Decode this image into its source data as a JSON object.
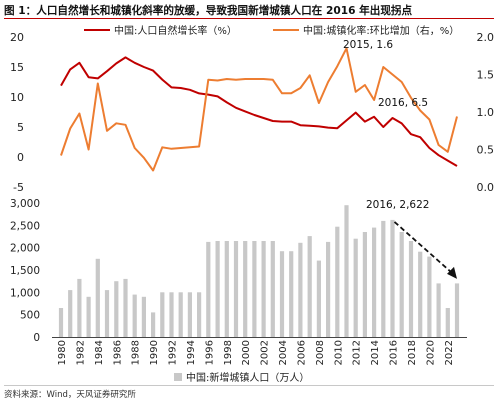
{
  "title": "图 1：人口自然增长和城镇化斜率的放缓，导致我国新增城镇人口在 2016 年出现拐点",
  "source": "资料来源：Wind，天风证券研究所",
  "colors": {
    "natural_growth": "#c00000",
    "urbanization": "#ed7d31",
    "bars": "#c8c8c8",
    "arrow": "#111111",
    "title_rule": "#c00000"
  },
  "chart_data": [
    {
      "type": "line",
      "x": [
        1980,
        1981,
        1982,
        1983,
        1984,
        1985,
        1986,
        1987,
        1988,
        1989,
        1990,
        1991,
        1992,
        1993,
        1994,
        1995,
        1996,
        1997,
        1998,
        1999,
        2000,
        2001,
        2002,
        2003,
        2004,
        2005,
        2006,
        2007,
        2008,
        2009,
        2010,
        2011,
        2012,
        2013,
        2014,
        2015,
        2016,
        2017,
        2018,
        2019,
        2020,
        2021,
        2022,
        2023
      ],
      "series": [
        {
          "name": "中国:人口自然增长率（%）",
          "axis": "left",
          "values": [
            11.9,
            14.6,
            15.7,
            13.3,
            13.1,
            14.3,
            15.6,
            16.6,
            15.7,
            15.0,
            14.4,
            12.9,
            11.6,
            11.5,
            11.2,
            10.6,
            10.4,
            10.1,
            9.1,
            8.2,
            7.6,
            7.0,
            6.5,
            6.0,
            5.9,
            5.9,
            5.3,
            5.2,
            5.1,
            4.9,
            4.8,
            6.1,
            7.4,
            5.9,
            6.7,
            5.0,
            6.5,
            5.6,
            3.8,
            3.3,
            1.5,
            0.3,
            -0.6,
            -1.5
          ]
        },
        {
          "name": "中国:城镇化率:环比增加（右，%）",
          "axis": "right",
          "values": [
            0.42,
            0.78,
            0.98,
            0.5,
            1.38,
            0.75,
            0.85,
            0.83,
            0.52,
            0.39,
            0.22,
            0.53,
            0.51,
            0.52,
            0.53,
            0.54,
            1.43,
            1.42,
            1.44,
            1.43,
            1.44,
            1.44,
            1.44,
            1.43,
            1.25,
            1.25,
            1.32,
            1.49,
            1.12,
            1.4,
            1.61,
            1.85,
            1.27,
            1.36,
            1.16,
            1.6,
            1.5,
            1.4,
            1.19,
            1.02,
            0.9,
            0.56,
            0.47,
            0.94
          ]
        }
      ],
      "annotations": [
        {
          "label": "2015, 1.6",
          "x": 2015,
          "y": 1.6,
          "axis": "right"
        },
        {
          "label": "2016, 6.5",
          "x": 2016,
          "y": 6.5,
          "axis": "left"
        }
      ],
      "y_left": {
        "min": -5,
        "max": 20,
        "ticks": [
          -5,
          0,
          5,
          10,
          15,
          20
        ]
      },
      "y_right": {
        "min": 0,
        "max": 2,
        "ticks": [
          "0.0",
          "0.5",
          "1.0",
          "1.5",
          "2.0"
        ]
      },
      "legend_position": "top"
    },
    {
      "type": "bar",
      "x": [
        1980,
        1981,
        1982,
        1983,
        1984,
        1985,
        1986,
        1987,
        1988,
        1989,
        1990,
        1991,
        1992,
        1993,
        1994,
        1995,
        1996,
        1997,
        1998,
        1999,
        2000,
        2001,
        2002,
        2003,
        2004,
        2005,
        2006,
        2007,
        2008,
        2009,
        2010,
        2011,
        2012,
        2013,
        2014,
        2015,
        2016,
        2017,
        2018,
        2019,
        2020,
        2021,
        2022,
        2023
      ],
      "series": [
        {
          "name": "中国:新增城镇人口（万人）",
          "values": [
            650,
            1050,
            1300,
            900,
            1750,
            1050,
            1250,
            1300,
            950,
            900,
            550,
            1000,
            1000,
            1000,
            1000,
            1000,
            2130,
            2150,
            2150,
            2150,
            2150,
            2150,
            2150,
            2150,
            1920,
            1920,
            2110,
            2260,
            1710,
            2130,
            2470,
            2950,
            2200,
            2350,
            2450,
            2600,
            2622,
            2350,
            2150,
            1910,
            1800,
            1200,
            650,
            1200
          ]
        }
      ],
      "y": {
        "min": 0,
        "max": 3000,
        "ticks": [
          "0",
          "500",
          "1,000",
          "1,500",
          "2,000",
          "2,500",
          "3,000"
        ]
      },
      "x_ticks": [
        1980,
        1982,
        1984,
        1986,
        1988,
        1990,
        1992,
        1994,
        1996,
        1998,
        2000,
        2002,
        2004,
        2006,
        2008,
        2010,
        2012,
        2014,
        2016,
        2018,
        2020,
        2022
      ],
      "annotations": [
        {
          "label": "2016, 2,622",
          "x": 2016,
          "y": 2622
        }
      ],
      "trend_arrow": {
        "from": {
          "x": 2016,
          "y": 2622
        },
        "to": {
          "x": 2023,
          "y": 1300
        },
        "style": "dashed"
      },
      "legend_position": "bottom"
    }
  ]
}
